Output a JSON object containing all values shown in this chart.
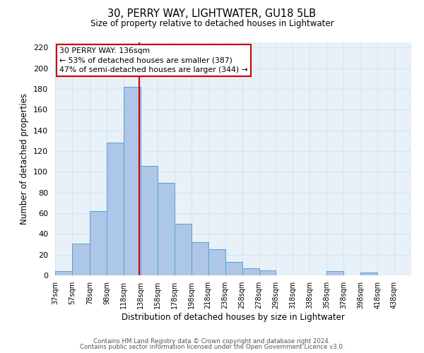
{
  "title": "30, PERRY WAY, LIGHTWATER, GU18 5LB",
  "subtitle": "Size of property relative to detached houses in Lightwater",
  "xlabel": "Distribution of detached houses by size in Lightwater",
  "ylabel": "Number of detached properties",
  "bin_labels": [
    "37sqm",
    "57sqm",
    "78sqm",
    "98sqm",
    "118sqm",
    "138sqm",
    "158sqm",
    "178sqm",
    "198sqm",
    "218sqm",
    "238sqm",
    "258sqm",
    "278sqm",
    "298sqm",
    "318sqm",
    "338sqm",
    "358sqm",
    "378sqm",
    "398sqm",
    "418sqm",
    "438sqm"
  ],
  "bin_edges": [
    37,
    57,
    78,
    98,
    118,
    138,
    158,
    178,
    198,
    218,
    238,
    258,
    278,
    298,
    318,
    338,
    358,
    378,
    398,
    418,
    438
  ],
  "bar_heights": [
    4,
    31,
    62,
    128,
    182,
    106,
    89,
    50,
    32,
    25,
    13,
    7,
    5,
    0,
    0,
    0,
    4,
    0,
    3,
    0
  ],
  "bar_color": "#aec6e8",
  "bar_edge_color": "#5a9fd4",
  "grid_color": "#d0e8f5",
  "vline_x": 136,
  "vline_color": "#cc0000",
  "annotation_line1": "30 PERRY WAY: 136sqm",
  "annotation_line2": "← 53% of detached houses are smaller (387)",
  "annotation_line3": "47% of semi-detached houses are larger (344) →",
  "annotation_box_color": "#ffffff",
  "annotation_border_color": "#cc0000",
  "ylim": [
    0,
    225
  ],
  "yticks": [
    0,
    20,
    40,
    60,
    80,
    100,
    120,
    140,
    160,
    180,
    200,
    220
  ],
  "footer1": "Contains HM Land Registry data © Crown copyright and database right 2024.",
  "footer2": "Contains public sector information licensed under the Open Government Licence v3.0.",
  "background_color": "#ffffff",
  "plot_bg_color": "#e8f0f8"
}
